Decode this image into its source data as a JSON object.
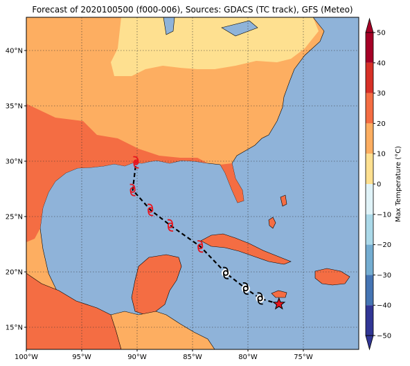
{
  "title": "Forecast of 2020100500 (f000-006), Sources: GDACS (TC track), GFS (Meteo)",
  "map": {
    "lon_range": [
      -100,
      -70
    ],
    "lat_range": [
      13,
      43
    ],
    "x_ticks": [
      {
        "value": -100,
        "label": "100°W"
      },
      {
        "value": -95,
        "label": "95°W"
      },
      {
        "value": -90,
        "label": "90°W"
      },
      {
        "value": -85,
        "label": "85°W"
      },
      {
        "value": -80,
        "label": "80°W"
      },
      {
        "value": -75,
        "label": "75°W"
      }
    ],
    "y_ticks": [
      {
        "value": 15,
        "label": "15°N"
      },
      {
        "value": 20,
        "label": "20°N"
      },
      {
        "value": 25,
        "label": "25°N"
      },
      {
        "value": 30,
        "label": "30°N"
      },
      {
        "value": 35,
        "label": "35°N"
      },
      {
        "value": 40,
        "label": "40°N"
      }
    ],
    "gridlines": true,
    "ocean_color": "#8fb3d9"
  },
  "colorbar": {
    "label": "Max Temperature (°C)",
    "ticks": [
      "50",
      "40",
      "30",
      "20",
      "10",
      "0",
      "−10",
      "−20",
      "−30",
      "−40",
      "−50"
    ],
    "colors": [
      "#a50026",
      "#d73027",
      "#f46d43",
      "#fdae61",
      "#fee090",
      "#ffffbf",
      "#e0f3f8",
      "#abd9e9",
      "#74add1",
      "#4575b4",
      "#313695"
    ]
  },
  "track": {
    "points": [
      {
        "lon": -77.2,
        "lat": 17.1,
        "kind": "current"
      },
      {
        "lon": -78.9,
        "lat": 17.6,
        "kind": "past"
      },
      {
        "lon": -80.2,
        "lat": 18.5,
        "kind": "past"
      },
      {
        "lon": -82.0,
        "lat": 19.9,
        "kind": "past"
      },
      {
        "lon": -84.3,
        "lat": 22.3,
        "kind": "forecast"
      },
      {
        "lon": -87.0,
        "lat": 24.2,
        "kind": "forecast"
      },
      {
        "lon": -88.8,
        "lat": 25.6,
        "kind": "forecast"
      },
      {
        "lon": -90.4,
        "lat": 27.4,
        "kind": "forecast"
      },
      {
        "lon": -90.1,
        "lat": 29.9,
        "kind": "landfall"
      }
    ]
  }
}
